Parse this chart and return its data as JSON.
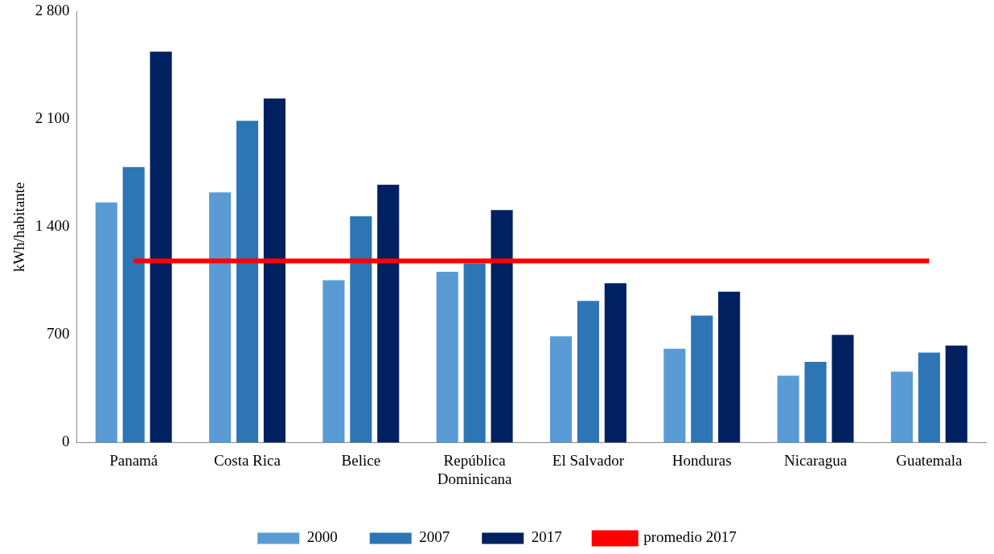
{
  "chart_data": {
    "type": "bar",
    "ylabel": "kWh/habitante",
    "categories": [
      "Panamá",
      "Costa Rica",
      "Belice",
      "República Dominicana",
      "El Salvador",
      "Honduras",
      "Nicaragua",
      "Guatemala"
    ],
    "series": [
      {
        "name": "2000",
        "color": "#5b9bd5",
        "values": [
          1560,
          1625,
          1055,
          1110,
          690,
          610,
          435,
          460
        ]
      },
      {
        "name": "2007",
        "color": "#2e75b6",
        "values": [
          1790,
          2090,
          1470,
          1165,
          920,
          825,
          525,
          585
        ]
      },
      {
        "name": "2017",
        "color": "#002060",
        "values": [
          2540,
          2235,
          1675,
          1510,
          1035,
          980,
          700,
          630
        ]
      }
    ],
    "ylim": [
      0,
      2800
    ],
    "yticks": [
      0,
      {
        "value": 700,
        "label": "700"
      },
      {
        "value": 1400,
        "label": "1 400"
      },
      {
        "value": 2100,
        "label": "2 100"
      },
      {
        "value": 2800,
        "label": "2 800"
      }
    ],
    "ref_lines": [
      {
        "axis": "y",
        "value": 1180,
        "label": "promedio 2017",
        "color": "#ff0000"
      }
    ],
    "grid": false,
    "legend": "bottom"
  }
}
